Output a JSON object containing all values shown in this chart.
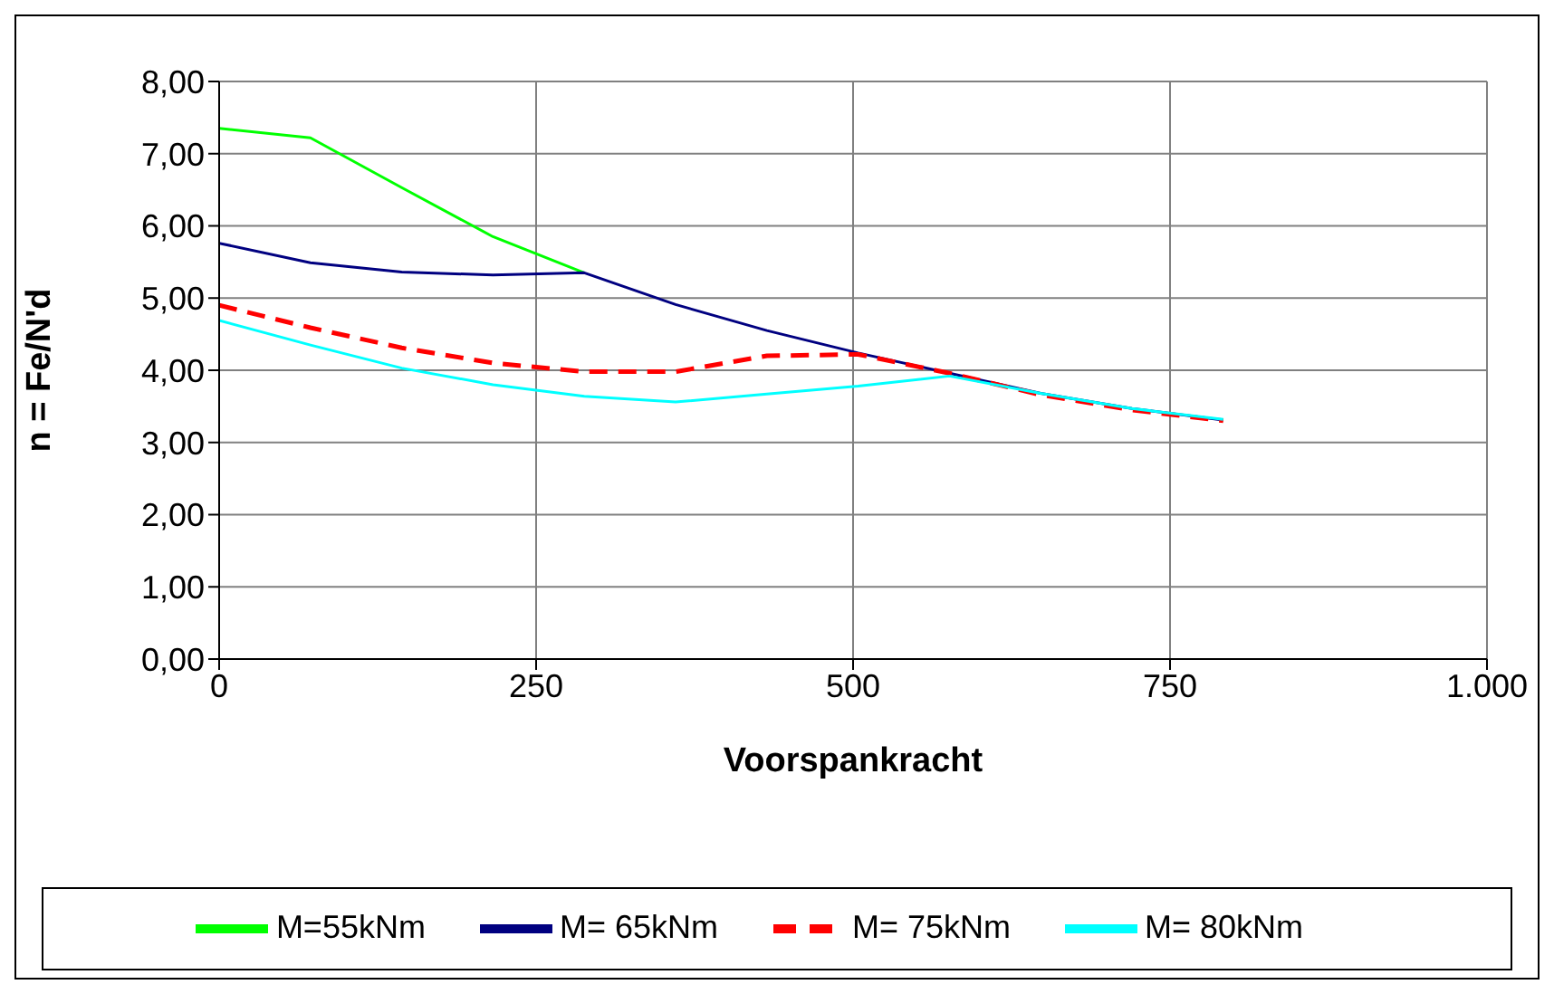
{
  "chart_data": {
    "type": "line",
    "xlabel": "Voorspankracht",
    "ylabel": "n = Fe/N'd",
    "x": [
      0,
      72,
      144,
      216,
      288,
      360,
      432,
      504,
      576,
      648,
      720,
      792
    ],
    "series": [
      {
        "name": "M=55kNm",
        "color": "#00ff00",
        "values": [
          7.35,
          7.22,
          6.53,
          5.85,
          5.35,
          null,
          null,
          null,
          null,
          null,
          null,
          null
        ]
      },
      {
        "name": "M= 65kNm",
        "color": "#000080",
        "values": [
          5.76,
          5.49,
          5.36,
          5.32,
          5.35,
          4.91,
          4.55,
          4.24,
          3.96,
          3.68,
          3.47,
          3.31
        ]
      },
      {
        "name": "M= 75kNm",
        "color": "#ff0000",
        "line_style": "dashed",
        "values": [
          4.9,
          4.59,
          4.31,
          4.1,
          3.98,
          3.98,
          4.2,
          4.22,
          3.96,
          3.66,
          3.45,
          3.3
        ]
      },
      {
        "name": "M= 80kNm",
        "color": "#00ffff",
        "values": [
          4.69,
          4.35,
          4.03,
          3.8,
          3.64,
          3.56,
          3.67,
          3.78,
          3.92,
          3.68,
          3.47,
          3.32
        ]
      }
    ],
    "xlim": [
      0,
      1000
    ],
    "xticks": [
      {
        "value": 0,
        "label": "0"
      },
      {
        "value": 250,
        "label": "250"
      },
      {
        "value": 500,
        "label": "500"
      },
      {
        "value": 750,
        "label": "750"
      },
      {
        "value": 1000,
        "label": "1.000"
      }
    ],
    "ylim": [
      0,
      8
    ],
    "yticks": [
      {
        "value": 0,
        "label": "0,00"
      },
      {
        "value": 1,
        "label": "1,00"
      },
      {
        "value": 2,
        "label": "2,00"
      },
      {
        "value": 3,
        "label": "3,00"
      },
      {
        "value": 4,
        "label": "4,00"
      },
      {
        "value": 5,
        "label": "5,00"
      },
      {
        "value": 6,
        "label": "6,00"
      },
      {
        "value": 7,
        "label": "7,00"
      },
      {
        "value": 8,
        "label": "8,00"
      }
    ],
    "grid": true,
    "legend": "bottom",
    "marker": "none"
  }
}
